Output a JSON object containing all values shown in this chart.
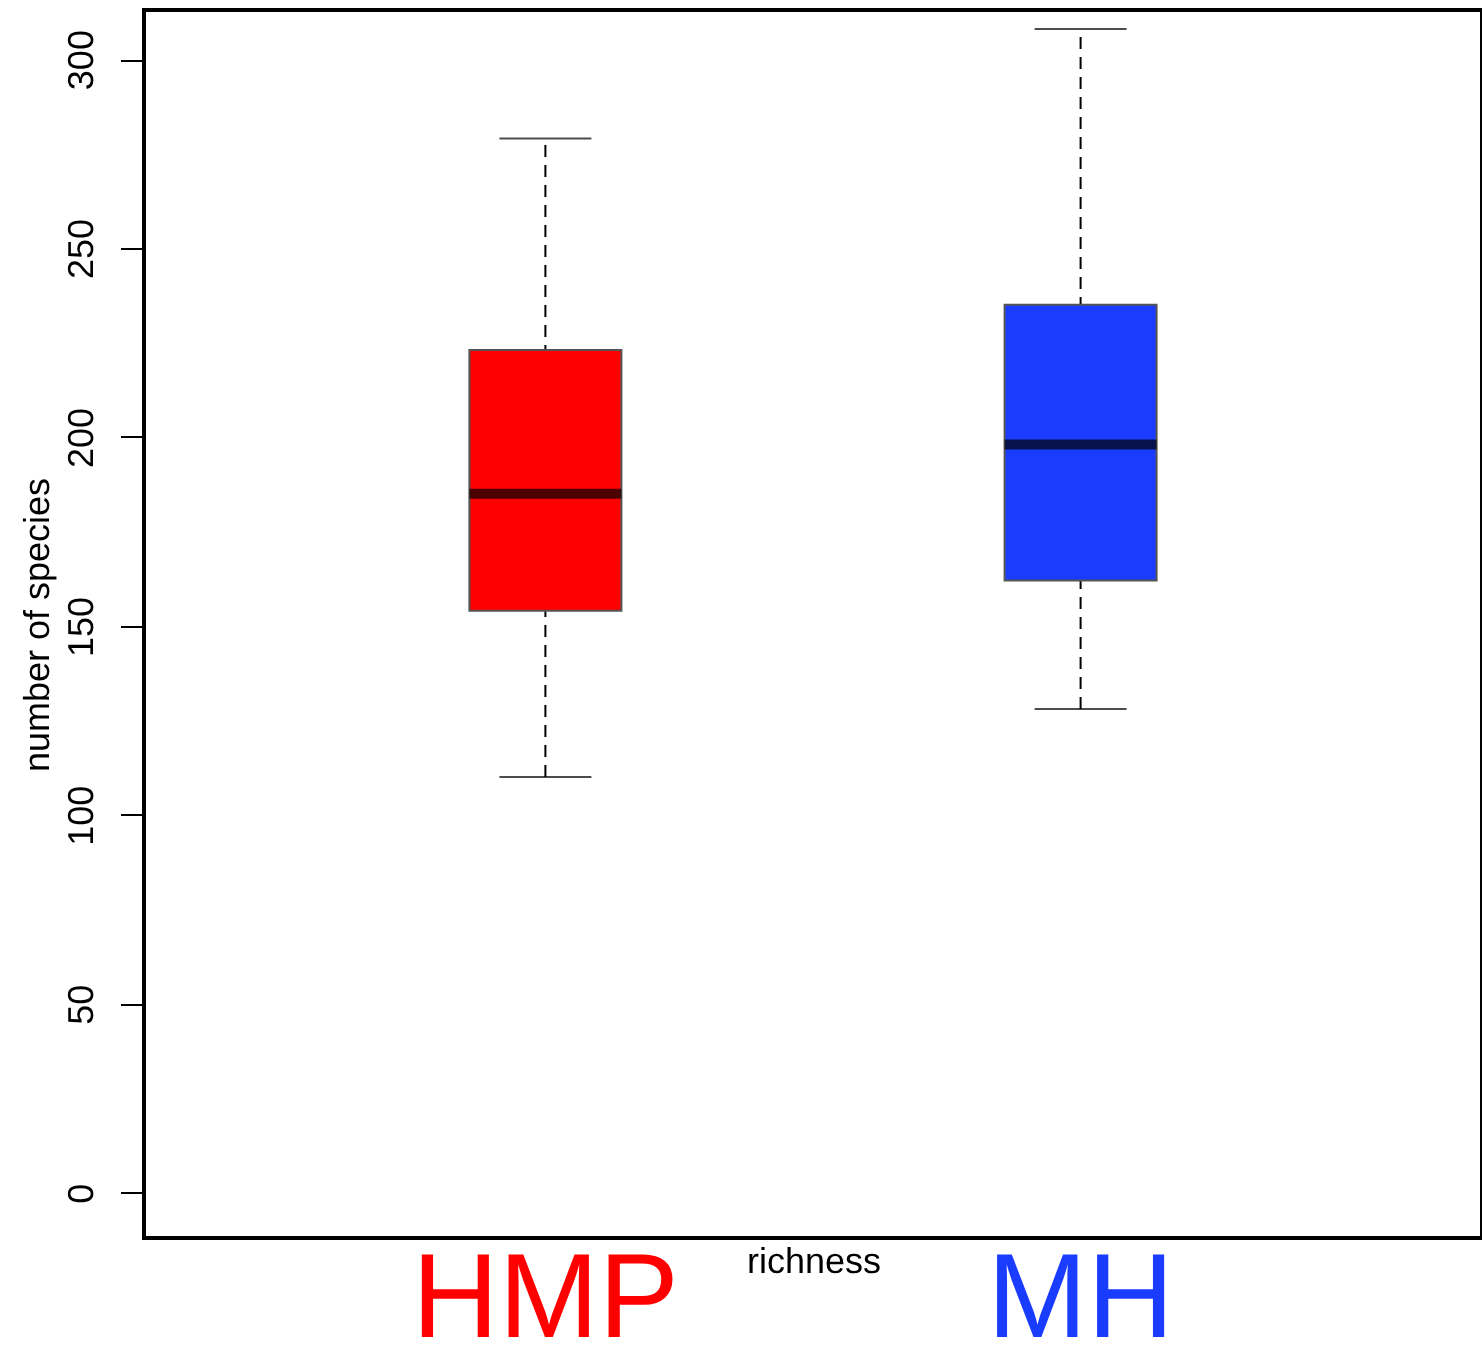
{
  "chart_data": {
    "type": "box",
    "xlabel": "richness",
    "ylabel": "number of species",
    "categories": [
      "HMP",
      "MH"
    ],
    "colors": [
      "#ff0000",
      "#1a3cff"
    ],
    "boxes": [
      {
        "low": 110,
        "q1": 154,
        "median": 185,
        "q3": 223,
        "high": 279
      },
      {
        "low": 128,
        "q1": 162,
        "median": 198,
        "q3": 235,
        "high": 308
      }
    ],
    "ylim": [
      -12,
      313
    ],
    "yticks": [
      0,
      50,
      100,
      150,
      200,
      250,
      300
    ],
    "grid": false,
    "legend": false
  }
}
